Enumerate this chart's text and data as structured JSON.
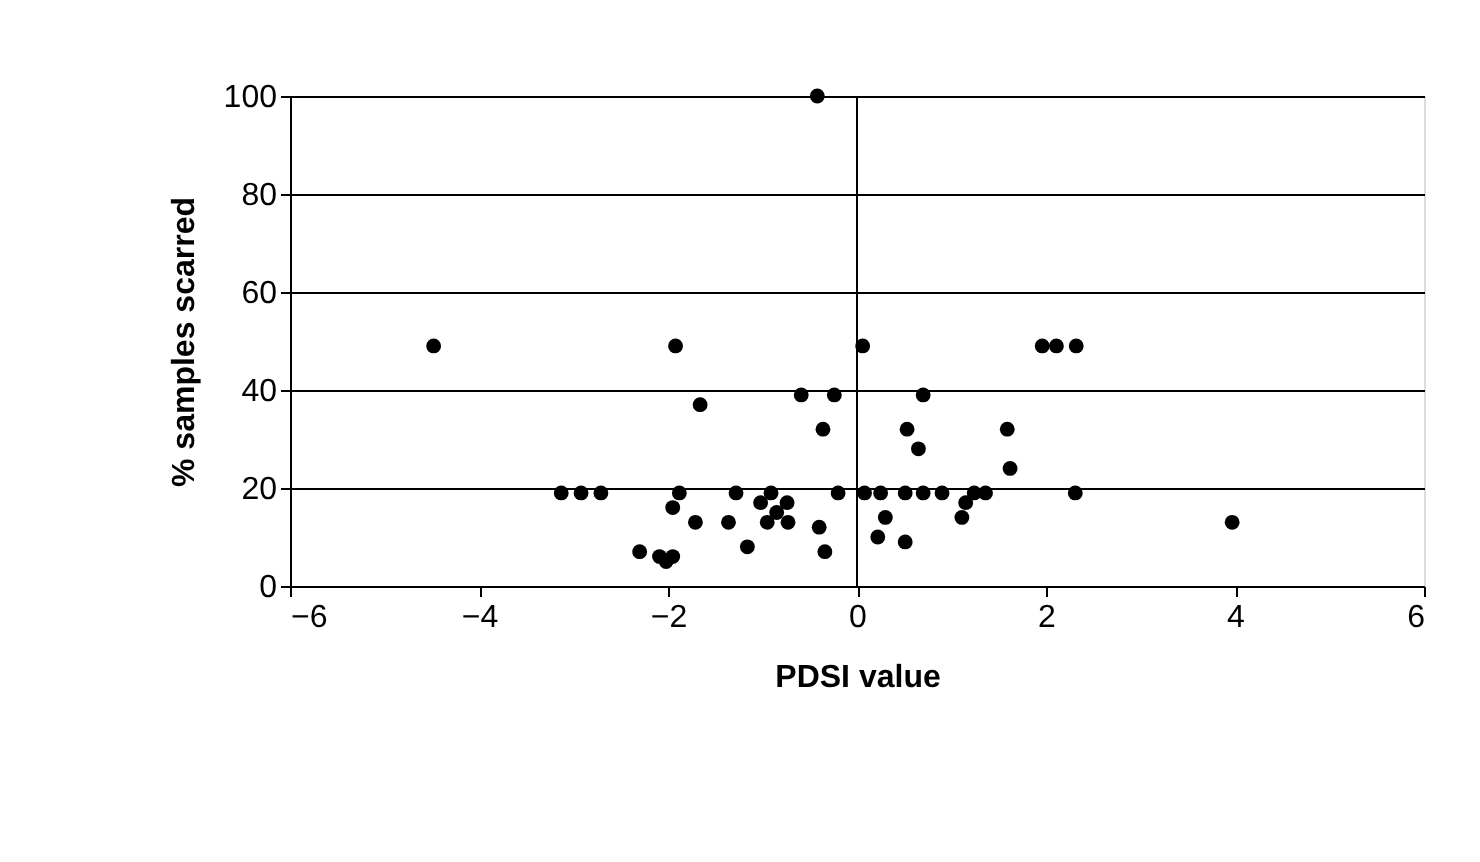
{
  "chart_data": {
    "type": "scatter",
    "xlabel": "PDSI value",
    "ylabel": "% samples scarred",
    "x": [
      -4.48,
      -1.92,
      0.06,
      -1.66,
      -0.59,
      -0.24,
      -0.36,
      -3.13,
      -2.92,
      -2.71,
      -1.88,
      -1.95,
      -1.28,
      -0.91,
      -1.02,
      -0.74,
      -0.95,
      -0.73,
      -0.85,
      -1.71,
      -1.36,
      -0.4,
      -2.3,
      -2.09,
      -1.95,
      -2.02,
      -1.16,
      -0.34,
      -0.42,
      0.7,
      0.53,
      0.65,
      1.59,
      1.62,
      1.96,
      2.11,
      2.32,
      -0.2,
      0.08,
      0.25,
      0.51,
      0.7,
      0.9,
      1.15,
      1.11,
      1.24,
      1.36,
      2.31,
      0.3,
      0.22,
      0.51,
      3.97
    ],
    "values": [
      49,
      49,
      49,
      37,
      39,
      39,
      32,
      19,
      19,
      19,
      19,
      16,
      19,
      19,
      17,
      17,
      13,
      13,
      15,
      13,
      13,
      12,
      7,
      6,
      6,
      5,
      8,
      7,
      100,
      39,
      32,
      28,
      32,
      24,
      49,
      49,
      49,
      19,
      19,
      19,
      19,
      19,
      19,
      17,
      14,
      19,
      19,
      19,
      14,
      10,
      9,
      13
    ],
    "color": "#000000",
    "marker": "circle",
    "xlim": [
      -6,
      6
    ],
    "xticks": [
      -6,
      -4,
      -2,
      0,
      2,
      4,
      6
    ],
    "ylim": [
      0,
      100
    ],
    "yticks": [
      0,
      20,
      40,
      60,
      80,
      100
    ],
    "grid": "y",
    "ref_lines": [
      {
        "axis": "x",
        "value": 0,
        "color": "#000000"
      }
    ]
  }
}
